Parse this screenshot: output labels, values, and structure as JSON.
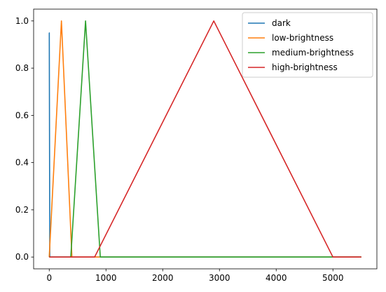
{
  "chart_data": {
    "type": "line",
    "title": "",
    "xlabel": "",
    "ylabel": "",
    "xlim": [
      -275,
      5775
    ],
    "ylim": [
      -0.05,
      1.05
    ],
    "x_ticks": [
      0,
      1000,
      2000,
      3000,
      4000,
      5000
    ],
    "y_ticks": [
      0.0,
      0.2,
      0.4,
      0.6,
      0.8,
      1.0
    ],
    "x_tick_labels": [
      "0",
      "1000",
      "2000",
      "3000",
      "4000",
      "5000"
    ],
    "y_tick_labels": [
      "0.0",
      "0.2",
      "0.4",
      "0.6",
      "0.8",
      "1.0"
    ],
    "grid": false,
    "legend_position": "top-right",
    "series": [
      {
        "name": "dark",
        "color": "#1f77b4",
        "x": [
          0,
          1,
          10,
          5500
        ],
        "y": [
          0.95,
          0.95,
          0.0,
          0.0
        ]
      },
      {
        "name": "low-brightness",
        "color": "#ff7f0e",
        "x": [
          0,
          215,
          400,
          5500
        ],
        "y": [
          0.0,
          1.0,
          0.0,
          0.0
        ]
      },
      {
        "name": "medium-brightness",
        "color": "#2ca02c",
        "x": [
          0,
          380,
          640,
          900,
          5500
        ],
        "y": [
          0.0,
          0.0,
          1.0,
          0.0,
          0.0
        ]
      },
      {
        "name": "high-brightness",
        "color": "#d62728",
        "x": [
          0,
          800,
          2900,
          5000,
          5500
        ],
        "y": [
          0.0,
          0.0,
          1.0,
          0.0,
          0.0
        ]
      }
    ]
  }
}
